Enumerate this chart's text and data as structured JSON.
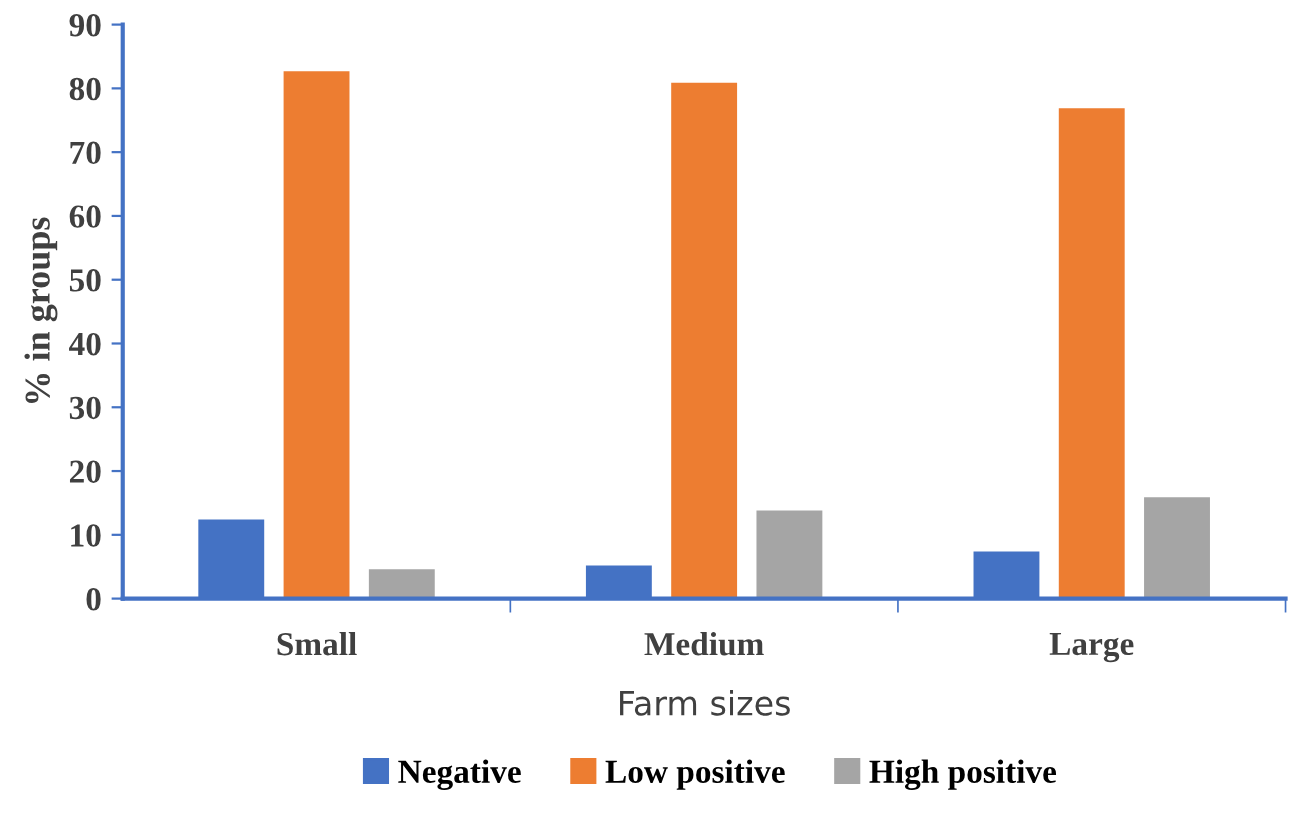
{
  "chart_data": {
    "type": "bar",
    "xlabel": "Farm sizes",
    "ylabel": "% in groups",
    "categories": [
      "Small",
      "Medium",
      "Large"
    ],
    "series": [
      {
        "name": "Negative",
        "color": "#4472c4",
        "values": [
          12.4,
          5.2,
          7.4
        ]
      },
      {
        "name": "Low positive",
        "color": "#ed7d31",
        "values": [
          82.7,
          80.9,
          76.9
        ]
      },
      {
        "name": "High positive",
        "color": "#a5a5a5",
        "values": [
          4.6,
          13.8,
          15.9
        ]
      }
    ],
    "ylim": [
      0,
      90
    ],
    "yticks": [
      0,
      10,
      20,
      30,
      40,
      50,
      60,
      70,
      80,
      90
    ],
    "grid": false,
    "legend": "bottom"
  }
}
